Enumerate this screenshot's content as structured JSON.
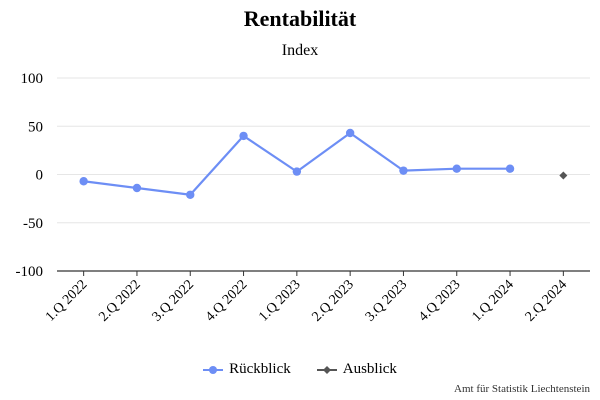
{
  "chart_data": {
    "type": "line",
    "title": "Rentabilität",
    "subtitle": "Index",
    "categories": [
      "1.Q 2022",
      "2.Q 2022",
      "3.Q 2022",
      "4.Q 2022",
      "1.Q 2023",
      "2.Q 2023",
      "3.Q 2023",
      "4.Q 2023",
      "1.Q 2024",
      "2.Q 2024"
    ],
    "ylim": [
      -100,
      100
    ],
    "yticks": [
      "100",
      "50",
      "0",
      "-50",
      "-100"
    ],
    "grid": true,
    "legend_position": "bottom-center",
    "series": [
      {
        "name": "Rückblick",
        "color": "#6d8ef5",
        "marker": "circle",
        "values": [
          -7,
          -14,
          -21,
          40,
          3,
          43,
          4,
          6,
          6,
          null
        ]
      },
      {
        "name": "Ausblick",
        "color": "#555555",
        "marker": "diamond",
        "values": [
          null,
          null,
          null,
          null,
          null,
          null,
          null,
          null,
          null,
          -1
        ]
      }
    ]
  },
  "credits": "Amt für Statistik Liechtenstein"
}
